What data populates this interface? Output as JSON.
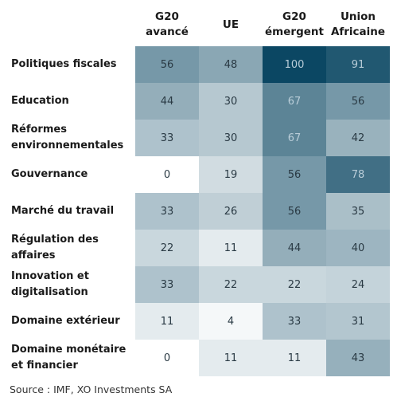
{
  "chart_data": {
    "type": "heatmap",
    "columns": [
      "G20\navancé",
      "UE",
      "G20\némergent",
      "Union\nAfricaine"
    ],
    "rows": [
      "Politiques fiscales",
      "Education",
      "Réformes\nenvironnementales",
      "Gouvernance",
      "Marché du travail",
      "Régulation des\naffaires",
      "Innovation et\ndigitalisation",
      "Domaine extérieur",
      "Domaine monétaire\net financier"
    ],
    "values": [
      [
        56,
        48,
        100,
        91
      ],
      [
        44,
        30,
        67,
        56
      ],
      [
        33,
        30,
        67,
        42
      ],
      [
        0,
        19,
        56,
        78
      ],
      [
        33,
        26,
        56,
        35
      ],
      [
        22,
        11,
        44,
        40
      ],
      [
        33,
        22,
        22,
        24
      ],
      [
        11,
        4,
        33,
        31
      ],
      [
        0,
        11,
        11,
        43
      ]
    ],
    "color_scale": {
      "min": 0,
      "max": 100,
      "low_color": "#ffffff",
      "high_color": "#0b4763"
    }
  },
  "source": "Source : IMF, XO Investments SA"
}
